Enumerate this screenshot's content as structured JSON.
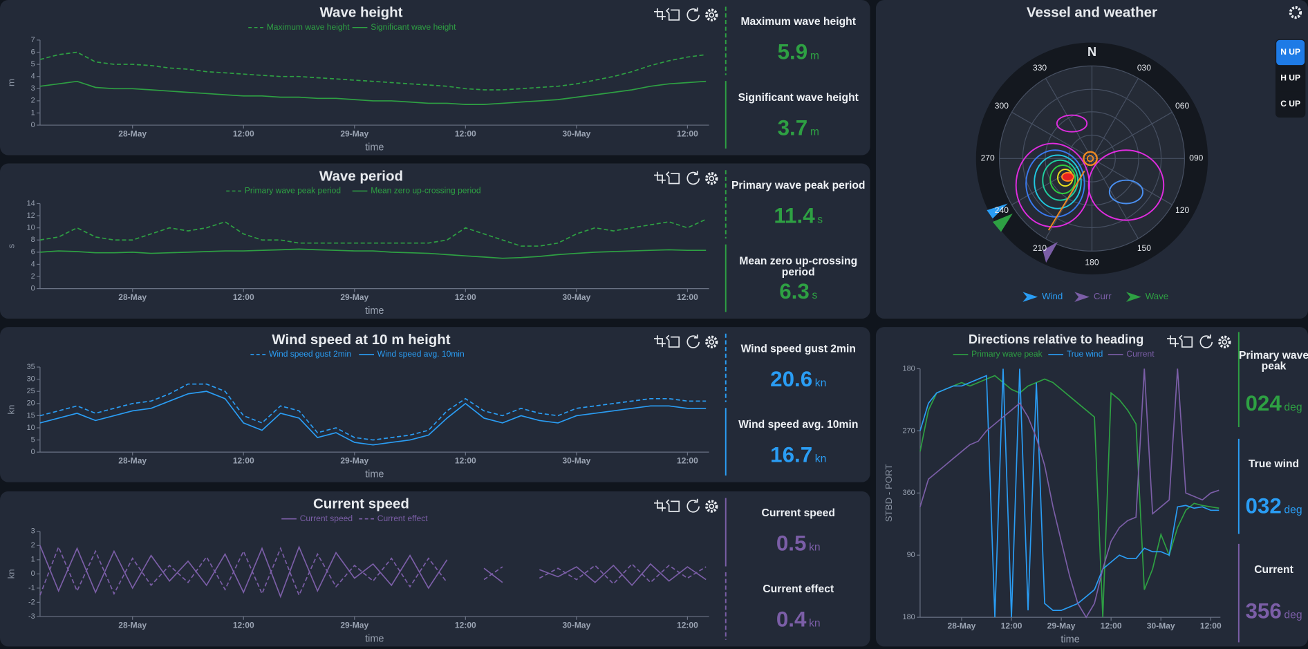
{
  "chart_data": [
    {
      "type": "line",
      "title": "Wave height",
      "xlabel": "time",
      "ylabel": "m",
      "x": [
        "27-May 14:00",
        "27-May 16:00",
        "27-May 18:00",
        "27-May 20:00",
        "27-May 22:00",
        "28-May 00:00",
        "28-May 02:00",
        "28-May 04:00",
        "28-May 06:00",
        "28-May 08:00",
        "28-May 10:00",
        "28-May 12:00",
        "28-May 14:00",
        "28-May 16:00",
        "28-May 18:00",
        "28-May 20:00",
        "28-May 22:00",
        "29-May 00:00",
        "29-May 02:00",
        "29-May 04:00",
        "29-May 06:00",
        "29-May 08:00",
        "29-May 10:00",
        "29-May 12:00",
        "29-May 14:00",
        "29-May 16:00",
        "29-May 18:00",
        "29-May 20:00",
        "29-May 22:00",
        "30-May 00:00",
        "30-May 02:00",
        "30-May 04:00",
        "30-May 06:00",
        "30-May 08:00",
        "30-May 10:00",
        "30-May 12:00",
        "30-May 14:00"
      ],
      "xlim": [
        "27-May 14:00",
        "30-May 14:20"
      ],
      "xticks": [
        {
          "value": "28-May 00:00",
          "label": "28-May"
        },
        {
          "value": "28-May 12:00",
          "label": "12:00"
        },
        {
          "value": "29-May 00:00",
          "label": "29-May"
        },
        {
          "value": "29-May 12:00",
          "label": "12:00"
        },
        {
          "value": "30-May 00:00",
          "label": "30-May"
        },
        {
          "value": "30-May 12:00",
          "label": "12:00"
        }
      ],
      "ylim": [
        0,
        7
      ],
      "yticks": [
        0,
        1,
        2,
        3,
        4,
        5,
        6,
        7
      ],
      "series": [
        {
          "name": "Maximum wave height",
          "color": "#2ea043",
          "dash": true,
          "values": [
            5.4,
            5.8,
            6.0,
            5.2,
            5.0,
            5.0,
            4.9,
            4.7,
            4.6,
            4.4,
            4.3,
            4.2,
            4.1,
            4.0,
            4.0,
            3.9,
            3.8,
            3.7,
            3.6,
            3.5,
            3.4,
            3.3,
            3.2,
            3.0,
            2.9,
            2.9,
            3.0,
            3.1,
            3.2,
            3.4,
            3.7,
            4.0,
            4.4,
            4.9,
            5.3,
            5.6,
            5.8
          ]
        },
        {
          "name": "Significant wave height",
          "color": "#2ea043",
          "dash": false,
          "values": [
            3.2,
            3.4,
            3.6,
            3.1,
            3.0,
            3.0,
            2.9,
            2.8,
            2.7,
            2.6,
            2.5,
            2.4,
            2.4,
            2.3,
            2.3,
            2.2,
            2.2,
            2.1,
            2.0,
            2.0,
            1.9,
            1.8,
            1.8,
            1.7,
            1.7,
            1.8,
            1.9,
            2.0,
            2.1,
            2.3,
            2.5,
            2.7,
            2.9,
            3.2,
            3.4,
            3.5,
            3.6
          ]
        }
      ],
      "readouts": [
        {
          "label": "Maximum wave height",
          "value": 5.9,
          "unit": "m"
        },
        {
          "label": "Significant wave height",
          "value": 3.7,
          "unit": "m"
        }
      ]
    },
    {
      "type": "line",
      "title": "Wave period",
      "xlabel": "time",
      "ylabel": "s",
      "x": [
        "27-May 14:00",
        "27-May 16:00",
        "27-May 18:00",
        "27-May 20:00",
        "27-May 22:00",
        "28-May 00:00",
        "28-May 02:00",
        "28-May 04:00",
        "28-May 06:00",
        "28-May 08:00",
        "28-May 10:00",
        "28-May 12:00",
        "28-May 14:00",
        "28-May 16:00",
        "28-May 18:00",
        "28-May 20:00",
        "28-May 22:00",
        "29-May 00:00",
        "29-May 02:00",
        "29-May 04:00",
        "29-May 06:00",
        "29-May 08:00",
        "29-May 10:00",
        "29-May 12:00",
        "29-May 14:00",
        "29-May 16:00",
        "29-May 18:00",
        "29-May 20:00",
        "29-May 22:00",
        "30-May 00:00",
        "30-May 02:00",
        "30-May 04:00",
        "30-May 06:00",
        "30-May 08:00",
        "30-May 10:00",
        "30-May 12:00",
        "30-May 14:00"
      ],
      "xlim": [
        "27-May 14:00",
        "30-May 14:20"
      ],
      "xticks": [
        {
          "value": "28-May 00:00",
          "label": "28-May"
        },
        {
          "value": "28-May 12:00",
          "label": "12:00"
        },
        {
          "value": "29-May 00:00",
          "label": "29-May"
        },
        {
          "value": "29-May 12:00",
          "label": "12:00"
        },
        {
          "value": "30-May 00:00",
          "label": "30-May"
        },
        {
          "value": "30-May 12:00",
          "label": "12:00"
        }
      ],
      "ylim": [
        0,
        14
      ],
      "yticks": [
        0,
        2,
        4,
        6,
        8,
        10,
        12,
        14
      ],
      "series": [
        {
          "name": "Primary wave peak period",
          "color": "#2ea043",
          "dash": true,
          "values": [
            8,
            8.5,
            10,
            8.5,
            8,
            8,
            9,
            10,
            9.5,
            10,
            11,
            9,
            8,
            8,
            7.5,
            7.5,
            7.5,
            7.5,
            7.5,
            7.5,
            7.5,
            7.5,
            8,
            10,
            9,
            8,
            7,
            7,
            7.5,
            9,
            10,
            9.5,
            10,
            10.5,
            11,
            10,
            11.4
          ]
        },
        {
          "name": "Mean zero up-crossing period",
          "color": "#2ea043",
          "dash": false,
          "values": [
            6.0,
            6.2,
            6.1,
            5.9,
            5.9,
            6.0,
            5.8,
            5.9,
            6.0,
            6.1,
            6.2,
            6.2,
            6.3,
            6.4,
            6.5,
            6.4,
            6.3,
            6.2,
            6.2,
            6.0,
            5.9,
            5.8,
            5.6,
            5.4,
            5.2,
            5.0,
            5.1,
            5.3,
            5.6,
            5.8,
            6.0,
            6.1,
            6.2,
            6.3,
            6.4,
            6.3,
            6.3
          ]
        }
      ],
      "readouts": [
        {
          "label": "Primary wave peak period",
          "value": 11.4,
          "unit": "s"
        },
        {
          "label": "Mean zero up-crossing period",
          "value": 6.3,
          "unit": "s"
        }
      ]
    },
    {
      "type": "line",
      "title": "Wind speed at 10 m height",
      "xlabel": "time",
      "ylabel": "kn",
      "x": [
        "27-May 14:00",
        "27-May 16:00",
        "27-May 18:00",
        "27-May 20:00",
        "27-May 22:00",
        "28-May 00:00",
        "28-May 02:00",
        "28-May 04:00",
        "28-May 06:00",
        "28-May 08:00",
        "28-May 10:00",
        "28-May 12:00",
        "28-May 14:00",
        "28-May 16:00",
        "28-May 18:00",
        "28-May 20:00",
        "28-May 22:00",
        "29-May 00:00",
        "29-May 02:00",
        "29-May 04:00",
        "29-May 06:00",
        "29-May 08:00",
        "29-May 10:00",
        "29-May 12:00",
        "29-May 14:00",
        "29-May 16:00",
        "29-May 18:00",
        "29-May 20:00",
        "29-May 22:00",
        "30-May 00:00",
        "30-May 02:00",
        "30-May 04:00",
        "30-May 06:00",
        "30-May 08:00",
        "30-May 10:00",
        "30-May 12:00",
        "30-May 14:00"
      ],
      "xlim": [
        "27-May 14:00",
        "30-May 14:20"
      ],
      "xticks": [
        {
          "value": "28-May 00:00",
          "label": "28-May"
        },
        {
          "value": "28-May 12:00",
          "label": "12:00"
        },
        {
          "value": "29-May 00:00",
          "label": "29-May"
        },
        {
          "value": "29-May 12:00",
          "label": "12:00"
        },
        {
          "value": "30-May 00:00",
          "label": "30-May"
        },
        {
          "value": "30-May 12:00",
          "label": "12:00"
        }
      ],
      "ylim": [
        0,
        35
      ],
      "yticks": [
        0,
        5,
        10,
        15,
        20,
        25,
        30,
        35
      ],
      "series": [
        {
          "name": "Wind speed gust 2min",
          "color": "#2a9df4",
          "dash": true,
          "values": [
            15,
            17,
            19,
            16,
            18,
            20,
            21,
            24,
            28,
            28,
            25,
            15,
            12,
            19,
            17,
            8,
            10,
            6,
            5,
            6,
            7,
            9,
            17,
            22,
            17,
            15,
            18,
            16,
            15,
            18,
            19,
            20,
            21,
            22,
            22,
            21,
            21
          ]
        },
        {
          "name": "Wind speed avg. 10min",
          "color": "#2a9df4",
          "dash": false,
          "values": [
            12,
            14,
            16,
            13,
            15,
            17,
            18,
            21,
            24,
            25,
            22,
            12,
            9,
            16,
            14,
            6,
            8,
            4,
            3,
            4,
            5,
            7,
            14,
            20,
            14,
            12,
            15,
            13,
            12,
            15,
            16,
            17,
            18,
            19,
            19,
            18,
            18
          ]
        }
      ],
      "readouts": [
        {
          "label": "Wind speed gust 2min",
          "value": 20.6,
          "unit": "kn"
        },
        {
          "label": "Wind speed avg. 10min",
          "value": 16.7,
          "unit": "kn"
        }
      ]
    },
    {
      "type": "line",
      "title": "Current speed",
      "xlabel": "time",
      "ylabel": "kn",
      "x": [
        "27-May 14:00",
        "27-May 16:00",
        "27-May 18:00",
        "27-May 20:00",
        "27-May 22:00",
        "28-May 00:00",
        "28-May 02:00",
        "28-May 04:00",
        "28-May 06:00",
        "28-May 08:00",
        "28-May 10:00",
        "28-May 12:00",
        "28-May 14:00",
        "28-May 16:00",
        "28-May 18:00",
        "28-May 20:00",
        "28-May 22:00",
        "29-May 00:00",
        "29-May 02:00",
        "29-May 04:00",
        "29-May 06:00",
        "29-May 08:00",
        "29-May 10:00",
        "29-May 12:00",
        "29-May 14:00",
        "29-May 16:00",
        "29-May 18:00",
        "29-May 20:00",
        "29-May 22:00",
        "30-May 00:00",
        "30-May 02:00",
        "30-May 04:00",
        "30-May 06:00",
        "30-May 08:00",
        "30-May 10:00",
        "30-May 12:00",
        "30-May 14:00"
      ],
      "xlim": [
        "27-May 14:00",
        "30-May 14:20"
      ],
      "xticks": [
        {
          "value": "28-May 00:00",
          "label": "28-May"
        },
        {
          "value": "28-May 12:00",
          "label": "12:00"
        },
        {
          "value": "29-May 00:00",
          "label": "29-May"
        },
        {
          "value": "29-May 12:00",
          "label": "12:00"
        },
        {
          "value": "30-May 00:00",
          "label": "30-May"
        },
        {
          "value": "30-May 12:00",
          "label": "12:00"
        }
      ],
      "ylim": [
        -3,
        3
      ],
      "yticks": [
        -3,
        -2,
        -1,
        0,
        1,
        2,
        3
      ],
      "series": [
        {
          "name": "Current speed",
          "color": "#7b5ea7",
          "dash": false,
          "values": [
            2.0,
            -1.2,
            1.8,
            -1.3,
            1.6,
            -1.0,
            1.3,
            -0.5,
            0.9,
            -0.8,
            1.4,
            -1.3,
            1.8,
            -1.6,
            1.9,
            -1.2,
            1.5,
            -0.3,
            0.7,
            -0.8,
            1.3,
            -1.0,
            1.0,
            null,
            0.4,
            -0.6,
            null,
            0.3,
            -0.2,
            0.5,
            -0.6,
            0.6,
            -0.8,
            0.7,
            -0.5,
            0.5,
            -0.4
          ]
        },
        {
          "name": "Current effect",
          "color": "#7b5ea7",
          "dash": true,
          "values": [
            -1.5,
            1.9,
            -1.2,
            1.6,
            -1.4,
            1.1,
            -0.8,
            0.6,
            -0.6,
            1.2,
            -1.1,
            1.6,
            -1.4,
            1.8,
            -1.5,
            1.4,
            -0.9,
            0.6,
            -0.5,
            1.1,
            -0.9,
            1.1,
            -0.6,
            null,
            -0.4,
            0.5,
            null,
            -0.3,
            0.4,
            -0.4,
            0.6,
            -0.7,
            0.7,
            -0.6,
            0.6,
            -0.3,
            0.5
          ]
        }
      ],
      "readouts": [
        {
          "label": "Current speed",
          "value": 0.5,
          "unit": "kn"
        },
        {
          "label": "Current effect",
          "value": 0.4,
          "unit": "kn"
        }
      ]
    },
    {
      "type": "polar",
      "title": "Vessel and weather",
      "compass_labels": [
        "N",
        "030",
        "060",
        "090",
        "120",
        "150",
        "180",
        "210",
        "240",
        "270",
        "300",
        "330"
      ],
      "legend": [
        {
          "name": "Wind",
          "color": "#2a9df4"
        },
        {
          "name": "Curr",
          "color": "#7b5ea7"
        },
        {
          "name": "Wave",
          "color": "#2ea043"
        }
      ],
      "buttons": [
        {
          "label": "N UP",
          "active": true
        },
        {
          "label": "H UP",
          "active": false
        },
        {
          "label": "C UP",
          "active": false
        }
      ]
    },
    {
      "type": "line",
      "title": "Directions relative to heading",
      "xlabel": "time",
      "ylabel": "STBD - PORT",
      "x": [
        "27-May 14:00",
        "27-May 16:00",
        "27-May 18:00",
        "27-May 20:00",
        "27-May 22:00",
        "28-May 00:00",
        "28-May 02:00",
        "28-May 04:00",
        "28-May 06:00",
        "28-May 08:00",
        "28-May 10:00",
        "28-May 12:00",
        "28-May 14:00",
        "28-May 16:00",
        "28-May 18:00",
        "28-May 20:00",
        "28-May 22:00",
        "29-May 00:00",
        "29-May 02:00",
        "29-May 04:00",
        "29-May 06:00",
        "29-May 08:00",
        "29-May 10:00",
        "29-May 12:00",
        "29-May 14:00",
        "29-May 16:00",
        "29-May 18:00",
        "29-May 20:00",
        "29-May 22:00",
        "30-May 00:00",
        "30-May 02:00",
        "30-May 04:00",
        "30-May 06:00",
        "30-May 08:00",
        "30-May 10:00",
        "30-May 12:00",
        "30-May 14:00"
      ],
      "xlim": [
        "27-May 14:00",
        "30-May 14:20"
      ],
      "xticks": [
        {
          "value": "28-May 00:00",
          "label": "28-May"
        },
        {
          "value": "28-May 12:00",
          "label": "12:00"
        },
        {
          "value": "29-May 00:00",
          "label": "29-May"
        },
        {
          "value": "29-May 12:00",
          "label": "12:00"
        },
        {
          "value": "30-May 00:00",
          "label": "30-May"
        },
        {
          "value": "30-May 12:00",
          "label": "12:00"
        }
      ],
      "ylim": [
        540,
        180
      ],
      "yticks": [
        180,
        270,
        360,
        {
          "value": 450,
          "label": "90"
        },
        {
          "value": 540,
          "label": "180"
        }
      ],
      "series": [
        {
          "name": "Primary wave peak",
          "color": "#2ea043",
          "dash": false,
          "values": [
            300,
            240,
            215,
            210,
            205,
            200,
            205,
            200,
            195,
            190,
            200,
            210,
            215,
            205,
            200,
            195,
            200,
            210,
            220,
            230,
            240,
            250,
            540,
            215,
            225,
            240,
            260,
            500,
            470,
            420,
            450,
            410,
            385,
            375,
            378,
            380,
            382
          ]
        },
        {
          "name": "True wind",
          "color": "#2a9df4",
          "dash": false,
          "values": [
            270,
            230,
            215,
            210,
            205,
            205,
            200,
            195,
            190,
            540,
            180,
            540,
            180,
            530,
            200,
            520,
            530,
            530,
            525,
            520,
            510,
            500,
            470,
            460,
            450,
            455,
            455,
            440,
            445,
            445,
            450,
            380,
            378,
            382,
            380,
            385,
            385
          ]
        },
        {
          "name": "Current",
          "color": "#7b5ea7",
          "dash": false,
          "values": [
            380,
            340,
            330,
            320,
            310,
            300,
            290,
            285,
            270,
            260,
            250,
            240,
            230,
            250,
            280,
            320,
            380,
            430,
            480,
            520,
            540,
            520,
            470,
            430,
            410,
            400,
            395,
            180,
            390,
            380,
            370,
            180,
            360,
            365,
            370,
            360,
            356
          ]
        }
      ],
      "readouts": [
        {
          "label": "Primary wave peak",
          "value": "024",
          "unit": "deg"
        },
        {
          "label": "True wind",
          "value": "032",
          "unit": "deg"
        },
        {
          "label": "Current",
          "value": 356,
          "unit": "deg"
        }
      ]
    }
  ]
}
